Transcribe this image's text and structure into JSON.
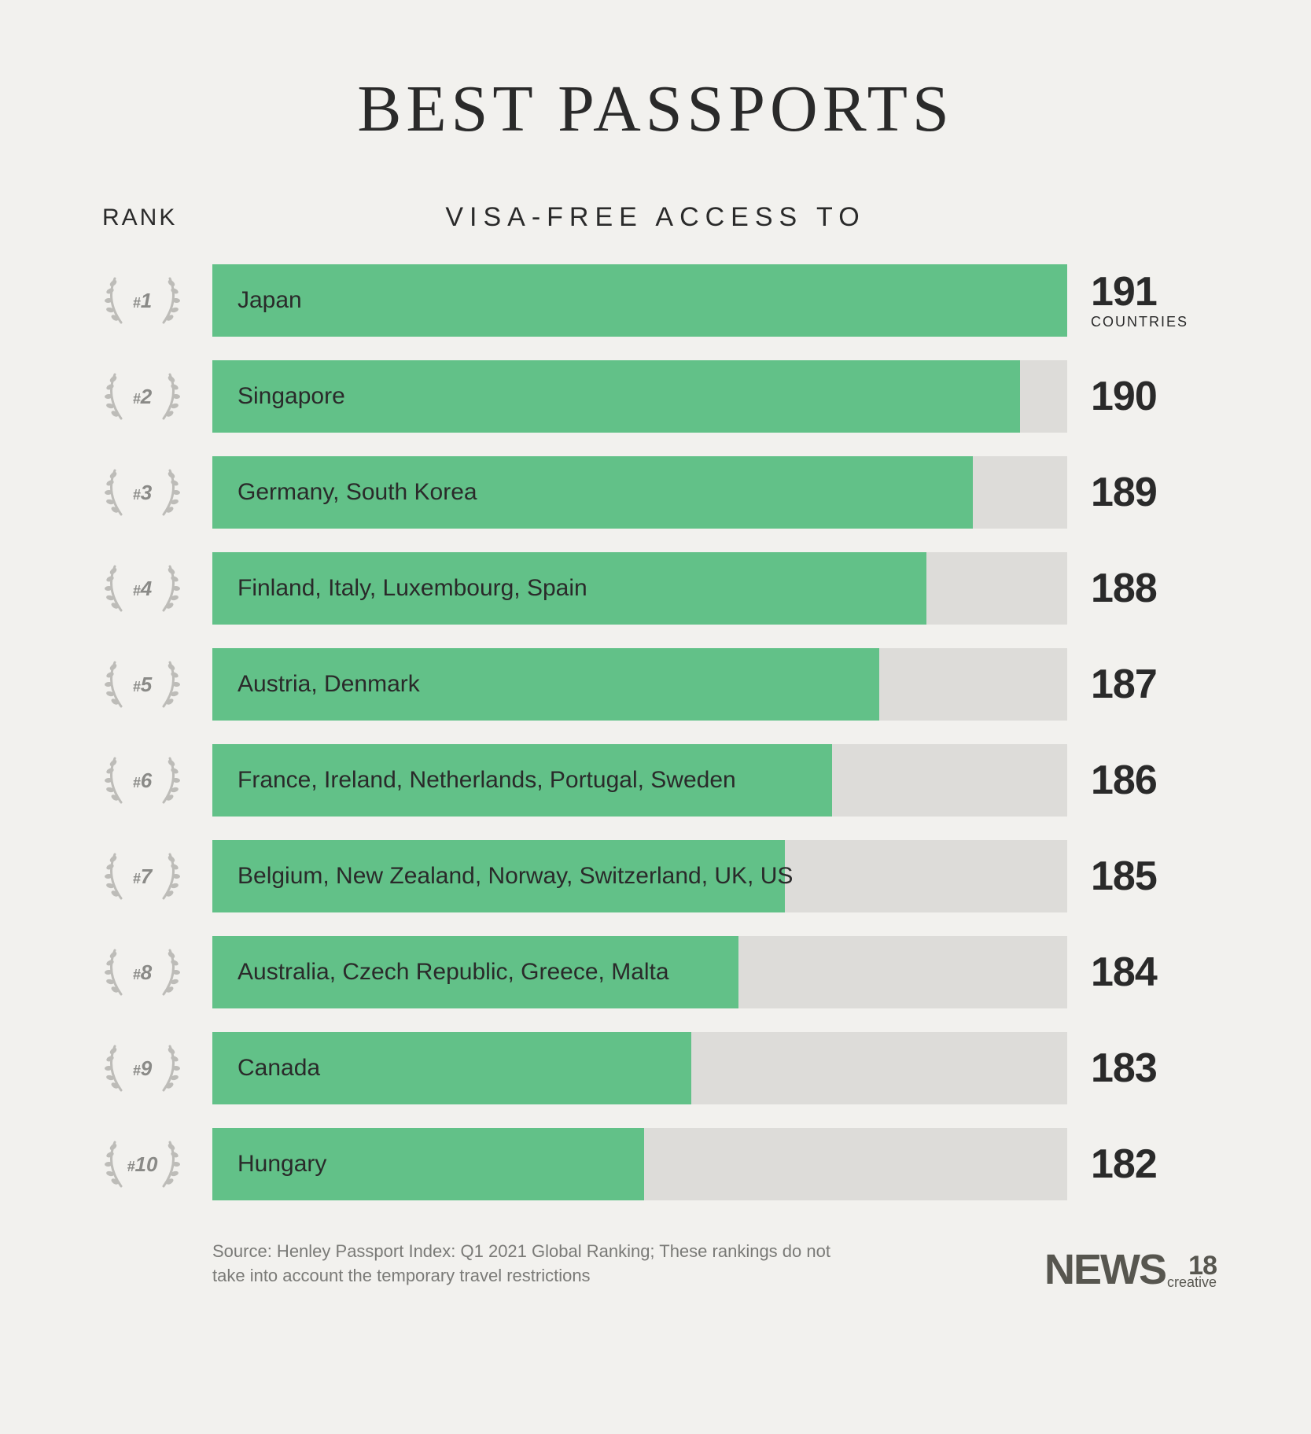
{
  "title": "BEST PASSPORTS",
  "headers": {
    "rank": "RANK",
    "access": "VISA-FREE ACCESS TO"
  },
  "chart": {
    "type": "bar",
    "bar_color": "#62c188",
    "bar_track_color": "#dddcd9",
    "background_color": "#f2f1ee",
    "text_color": "#2a2a2a",
    "laurel_color": "#bdbcb8",
    "rank_text_color": "#8a8a87",
    "max_value": 191,
    "value_suffix_first": "COUNTRIES",
    "bar_widths_pct": [
      100,
      94.5,
      89,
      83.5,
      78,
      72.5,
      67,
      61.5,
      56,
      50.5
    ],
    "rows": [
      {
        "rank": "#1",
        "label": "Japan",
        "value": 191
      },
      {
        "rank": "#2",
        "label": "Singapore",
        "value": 190
      },
      {
        "rank": "#3",
        "label": "Germany, South Korea",
        "value": 189
      },
      {
        "rank": "#4",
        "label": "Finland, Italy, Luxembourg, Spain",
        "value": 188
      },
      {
        "rank": "#5",
        "label": "Austria, Denmark",
        "value": 187
      },
      {
        "rank": "#6",
        "label": "France, Ireland, Netherlands, Portugal, Sweden",
        "value": 186
      },
      {
        "rank": "#7",
        "label": "Belgium, New Zealand, Norway, Switzerland, UK, US",
        "value": 185
      },
      {
        "rank": "#8",
        "label": "Australia, Czech Republic, Greece, Malta",
        "value": 184
      },
      {
        "rank": "#9",
        "label": "Canada",
        "value": 183
      },
      {
        "rank": "#10",
        "label": "Hungary",
        "value": 182
      }
    ]
  },
  "source": "Source: Henley Passport Index: Q1 2021 Global Ranking; These rankings do not take into account the temporary travel restrictions",
  "logo": {
    "main": "NEWS",
    "num": "18",
    "sub": "creative"
  }
}
